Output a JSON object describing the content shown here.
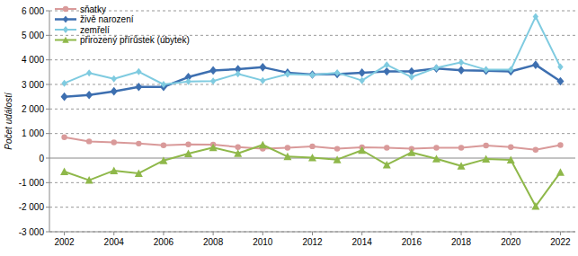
{
  "chart_data": {
    "type": "line",
    "y_label": "Počet událostí",
    "x": [
      2002,
      2003,
      2004,
      2005,
      2006,
      2007,
      2008,
      2009,
      2010,
      2011,
      2012,
      2013,
      2014,
      2015,
      2016,
      2017,
      2018,
      2019,
      2020,
      2021,
      2022
    ],
    "xlim": [
      2001.4,
      2022.6
    ],
    "xticks": [
      2002,
      2004,
      2006,
      2008,
      2010,
      2012,
      2014,
      2016,
      2018,
      2020,
      2022
    ],
    "ylim": [
      -3000,
      6000
    ],
    "yticks": [
      {
        "value": -3000,
        "label": "-3 000"
      },
      {
        "value": -2000,
        "label": "-2 000"
      },
      {
        "value": -1000,
        "label": "-1 000"
      },
      0,
      {
        "value": 1000,
        "label": "1 000"
      },
      {
        "value": 2000,
        "label": "2 000"
      },
      {
        "value": 3000,
        "label": "3 000"
      },
      {
        "value": 4000,
        "label": "4 000"
      },
      {
        "value": 5000,
        "label": "5 000"
      },
      {
        "value": 6000,
        "label": "6 000"
      }
    ],
    "grid": true,
    "legend": "upper left",
    "series": [
      {
        "name": "sňatky",
        "color": "#d99a9a",
        "marker": "circle",
        "values": [
          850,
          680,
          640,
          590,
          520,
          560,
          550,
          450,
          380,
          420,
          480,
          380,
          440,
          420,
          380,
          420,
          420,
          510,
          450,
          340,
          530
        ]
      },
      {
        "name": "živě narození",
        "color": "#3d6fb0",
        "marker": "diamond",
        "values": [
          2500,
          2570,
          2720,
          2900,
          2900,
          3300,
          3570,
          3620,
          3700,
          3480,
          3400,
          3420,
          3480,
          3530,
          3530,
          3650,
          3580,
          3560,
          3530,
          3800,
          3130
        ]
      },
      {
        "name": "zemřelí",
        "color": "#7fcbe0",
        "marker": "diamond",
        "values": [
          3050,
          3470,
          3230,
          3520,
          3000,
          3120,
          3140,
          3430,
          3160,
          3420,
          3380,
          3480,
          3160,
          3800,
          3300,
          3680,
          3900,
          3600,
          3600,
          5760,
          3710
        ]
      },
      {
        "name": "přirozený přírůstek (úbytek)",
        "color": "#8fb84a",
        "marker": "triangle",
        "values": [
          -550,
          -900,
          -510,
          -620,
          -100,
          180,
          430,
          190,
          540,
          60,
          20,
          -60,
          320,
          -270,
          230,
          -30,
          -320,
          -40,
          -70,
          -1960,
          -580
        ]
      }
    ]
  }
}
